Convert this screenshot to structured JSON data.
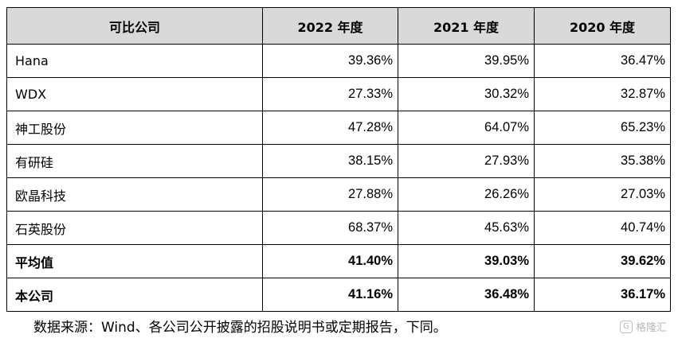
{
  "table": {
    "headers": [
      "可比公司",
      "2022 年度",
      "2021 年度",
      "2020 年度"
    ],
    "rows": [
      {
        "name": "Hana",
        "values": [
          "39.36%",
          "39.95%",
          "36.47%"
        ],
        "bold": false
      },
      {
        "name": "WDX",
        "values": [
          "27.33%",
          "30.32%",
          "32.87%"
        ],
        "bold": false
      },
      {
        "name": "神工股份",
        "values": [
          "47.28%",
          "64.07%",
          "65.23%"
        ],
        "bold": false
      },
      {
        "name": "有研硅",
        "values": [
          "38.15%",
          "27.93%",
          "35.38%"
        ],
        "bold": false
      },
      {
        "name": "欧晶科技",
        "values": [
          "27.88%",
          "26.26%",
          "27.03%"
        ],
        "bold": false
      },
      {
        "name": "石英股份",
        "values": [
          "68.37%",
          "45.63%",
          "40.74%"
        ],
        "bold": false
      },
      {
        "name": "平均值",
        "values": [
          "41.40%",
          "39.03%",
          "39.62%"
        ],
        "bold": true
      },
      {
        "name": "本公司",
        "values": [
          "41.16%",
          "36.48%",
          "36.17%"
        ],
        "bold": true
      }
    ],
    "header_bg": "#d9d9d9"
  },
  "note": "数据来源：Wind、各公司公开披露的招股说明书或定期报告，下同。",
  "watermark": {
    "text": "格隆汇",
    "icon": "gelonghui-logo-icon"
  }
}
